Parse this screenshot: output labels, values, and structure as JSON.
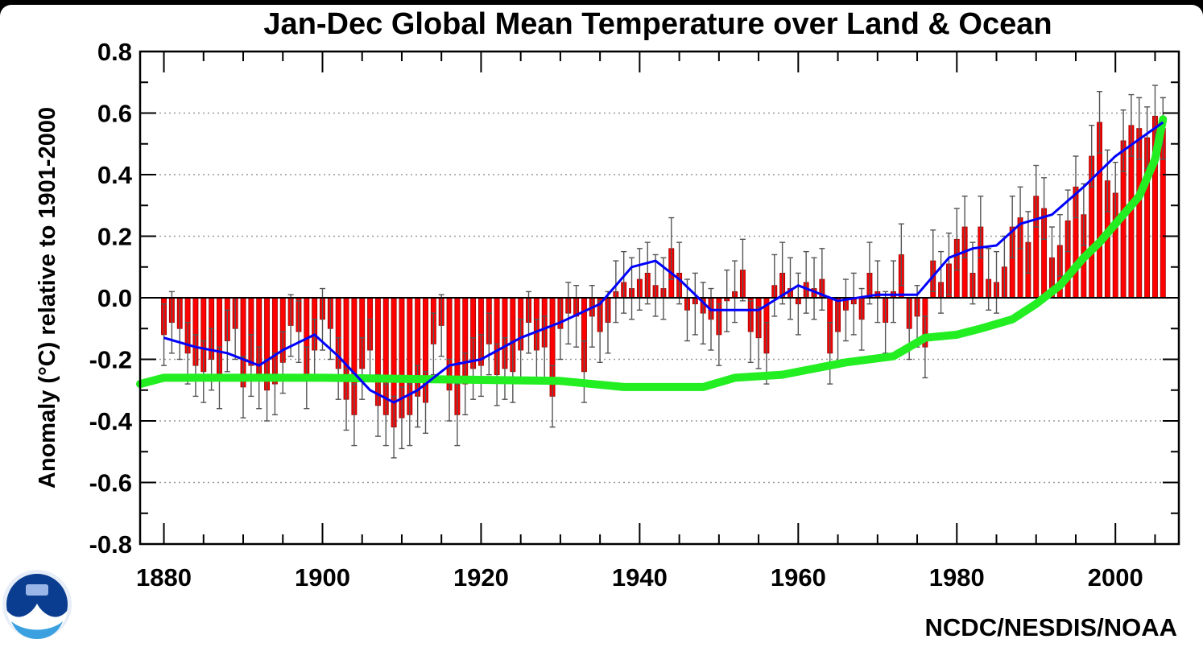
{
  "chart_data": {
    "type": "bar",
    "title": "Jan-Dec Global Mean Temperature over Land & Ocean",
    "xlabel": "",
    "ylabel": "Anomaly (°C) relative to 1901-2000",
    "credit": "NCDC/NESDIS/NOAA",
    "logo": "noaa-logo",
    "xlim": [
      1877,
      2008
    ],
    "ylim": [
      -0.8,
      0.8
    ],
    "x_ticks": [
      1880,
      1900,
      1920,
      1940,
      1960,
      1980,
      2000
    ],
    "y_ticks": [
      0.8,
      0.6,
      0.4,
      0.2,
      0.0,
      -0.2,
      -0.4,
      -0.6,
      -0.8
    ],
    "y_tick_labels": [
      "0.8",
      "0.6",
      "0.4",
      "0.2",
      "0.0",
      "-0.2",
      "-0.4",
      "-0.6",
      "-0.8"
    ],
    "grid": "horizontal-dotted",
    "colors": {
      "bars": "#ff0000",
      "bar_edge": "#9b0000",
      "error_bars": "#555555",
      "smooth": "#0000ff",
      "overlay": "#22ee22"
    },
    "years": [
      1880,
      1881,
      1882,
      1883,
      1884,
      1885,
      1886,
      1887,
      1888,
      1889,
      1890,
      1891,
      1892,
      1893,
      1894,
      1895,
      1896,
      1897,
      1898,
      1899,
      1900,
      1901,
      1902,
      1903,
      1904,
      1905,
      1906,
      1907,
      1908,
      1909,
      1910,
      1911,
      1912,
      1913,
      1914,
      1915,
      1916,
      1917,
      1918,
      1919,
      1920,
      1921,
      1922,
      1923,
      1924,
      1925,
      1926,
      1927,
      1928,
      1929,
      1930,
      1931,
      1932,
      1933,
      1934,
      1935,
      1936,
      1937,
      1938,
      1939,
      1940,
      1941,
      1942,
      1943,
      1944,
      1945,
      1946,
      1947,
      1948,
      1949,
      1950,
      1951,
      1952,
      1953,
      1954,
      1955,
      1956,
      1957,
      1958,
      1959,
      1960,
      1961,
      1962,
      1963,
      1964,
      1965,
      1966,
      1967,
      1968,
      1969,
      1970,
      1971,
      1972,
      1973,
      1974,
      1975,
      1976,
      1977,
      1978,
      1979,
      1980,
      1981,
      1982,
      1983,
      1984,
      1985,
      1986,
      1987,
      1988,
      1989,
      1990,
      1991,
      1992,
      1993,
      1994,
      1995,
      1996,
      1997,
      1998,
      1999,
      2000,
      2001,
      2002,
      2003,
      2004,
      2005,
      2006
    ],
    "series": [
      {
        "values": [
          -0.12,
          -0.08,
          -0.1,
          -0.18,
          -0.22,
          -0.24,
          -0.2,
          -0.26,
          -0.14,
          -0.1,
          -0.29,
          -0.22,
          -0.26,
          -0.3,
          -0.28,
          -0.21,
          -0.09,
          -0.11,
          -0.26,
          -0.17,
          -0.07,
          -0.1,
          -0.23,
          -0.33,
          -0.38,
          -0.23,
          -0.17,
          -0.35,
          -0.38,
          -0.42,
          -0.39,
          -0.38,
          -0.32,
          -0.34,
          -0.15,
          -0.09,
          -0.3,
          -0.38,
          -0.28,
          -0.23,
          -0.22,
          -0.15,
          -0.25,
          -0.23,
          -0.24,
          -0.17,
          -0.08,
          -0.17,
          -0.16,
          -0.32,
          -0.1,
          -0.05,
          -0.06,
          -0.24,
          -0.06,
          -0.11,
          -0.08,
          0.02,
          0.05,
          0.03,
          0.06,
          0.08,
          0.04,
          0.03,
          0.16,
          0.08,
          -0.04,
          -0.02,
          -0.05,
          -0.07,
          -0.12,
          -0.01,
          0.02,
          0.09,
          -0.11,
          -0.13,
          -0.18,
          0.04,
          0.08,
          0.03,
          -0.02,
          0.05,
          0.03,
          0.06,
          -0.18,
          -0.11,
          -0.04,
          -0.02,
          -0.07,
          0.08,
          0.02,
          -0.08,
          0.02,
          0.14,
          -0.1,
          -0.06,
          -0.16,
          0.12,
          0.05,
          0.11,
          0.19,
          0.23,
          0.08,
          0.23,
          0.06,
          0.05,
          0.1,
          0.23,
          0.26,
          0.18,
          0.33,
          0.29,
          0.13,
          0.17,
          0.25,
          0.36,
          0.27,
          0.46,
          0.57,
          0.38,
          0.34,
          0.51,
          0.56,
          0.55,
          0.52,
          0.59,
          0.55
        ],
        "error": 0.1
      }
    ],
    "smooth_curve": {
      "x": [
        1880,
        1884,
        1888,
        1892,
        1895,
        1899,
        1902,
        1906,
        1909,
        1912,
        1916,
        1920,
        1925,
        1930,
        1935,
        1939,
        1942,
        1945,
        1949,
        1955,
        1960,
        1965,
        1970,
        1975,
        1979,
        1982,
        1985,
        1988,
        1992,
        1996,
        2000,
        2006
      ],
      "y": [
        -0.13,
        -0.16,
        -0.18,
        -0.22,
        -0.17,
        -0.12,
        -0.19,
        -0.3,
        -0.34,
        -0.3,
        -0.22,
        -0.2,
        -0.13,
        -0.08,
        -0.02,
        0.1,
        0.12,
        0.06,
        -0.04,
        -0.04,
        0.04,
        -0.01,
        0.01,
        0.01,
        0.13,
        0.16,
        0.17,
        0.24,
        0.27,
        0.36,
        0.46,
        0.57
      ]
    },
    "overlay_curve": {
      "x": [
        1877,
        1880,
        1900,
        1930,
        1938,
        1948,
        1952,
        1958,
        1962,
        1966,
        1972,
        1976,
        1980,
        1983,
        1987,
        1990,
        1993,
        1996,
        1998,
        2000,
        2003,
        2005,
        2006
      ],
      "y": [
        -0.28,
        -0.26,
        -0.26,
        -0.27,
        -0.29,
        -0.29,
        -0.26,
        -0.25,
        -0.23,
        -0.21,
        -0.19,
        -0.13,
        -0.12,
        -0.1,
        -0.07,
        -0.02,
        0.04,
        0.13,
        0.18,
        0.24,
        0.33,
        0.45,
        0.58
      ]
    }
  }
}
